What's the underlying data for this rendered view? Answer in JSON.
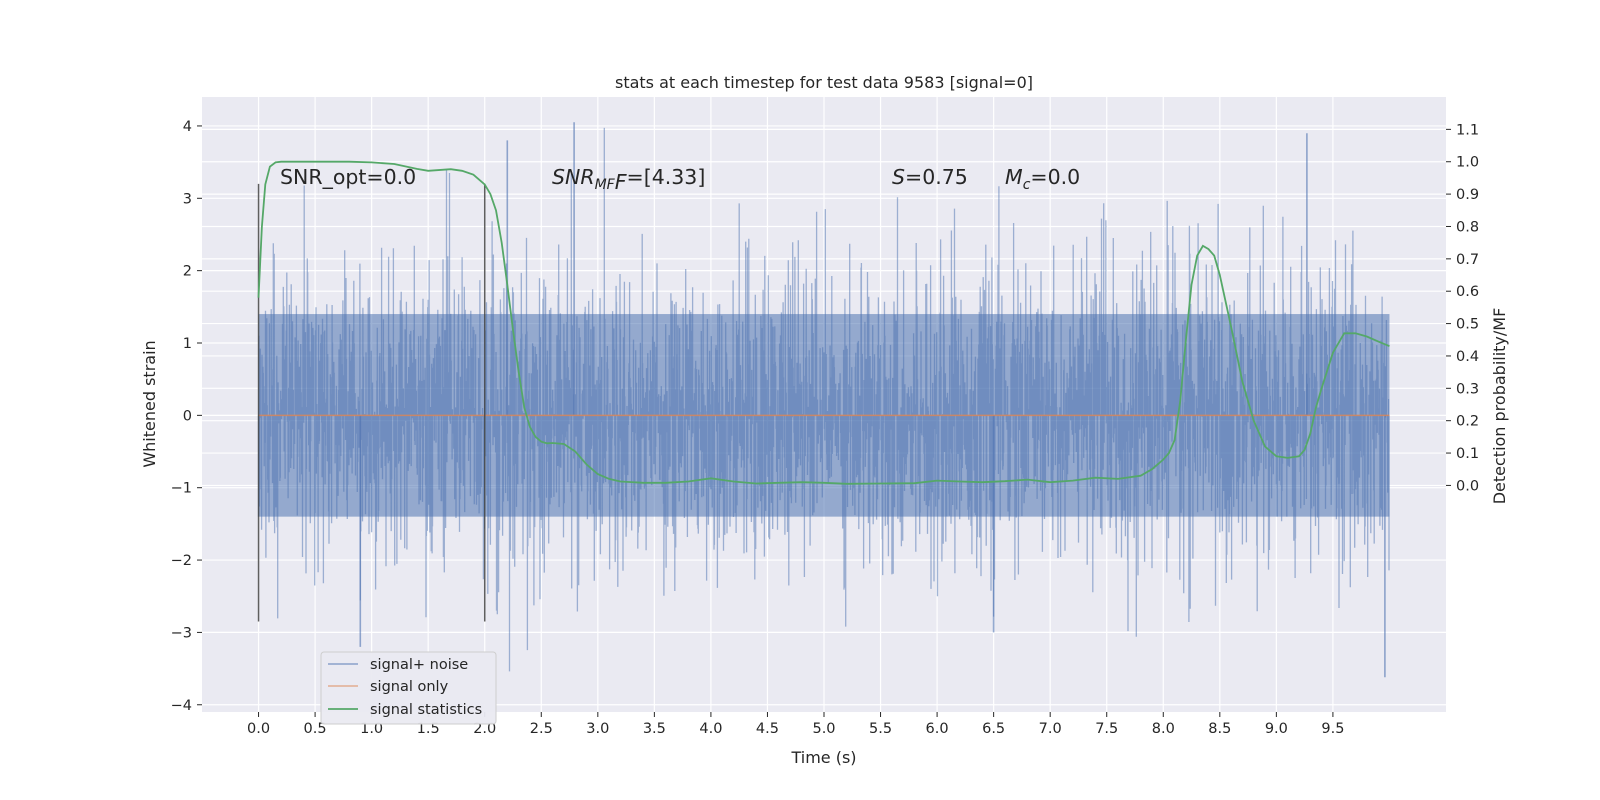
{
  "chart_data": {
    "type": "line",
    "title": "stats at each timestep for test data 9583 [signal=0]",
    "xlabel": "Time (s)",
    "ylabel": "Whitened strain",
    "ylabel_right": "Detection probability/MF",
    "xlim": [
      -0.5,
      10.5
    ],
    "ylim": [
      -4.1,
      4.4
    ],
    "ylim_right": [
      -0.7,
      1.2
    ],
    "x_ticks": [
      "0.0",
      "0.5",
      "1.0",
      "1.5",
      "2.0",
      "2.5",
      "3.0",
      "3.5",
      "4.0",
      "4.5",
      "5.0",
      "5.5",
      "6.0",
      "6.5",
      "7.0",
      "7.5",
      "8.0",
      "8.5",
      "9.0",
      "9.5"
    ],
    "y_ticks": [
      "4",
      "3",
      "2",
      "1",
      "0",
      "−1",
      "−2",
      "−3",
      "−4"
    ],
    "y_ticks_right": [
      "1.1",
      "1.0",
      "0.9",
      "0.8",
      "0.7",
      "0.6",
      "0.5",
      "0.4",
      "0.3",
      "0.2",
      "0.1",
      "0.0"
    ],
    "grid": true,
    "legend_placement": "lower-left",
    "annotations": {
      "snr_opt": "SNR_opt=0.0",
      "snr_mf_base": "SNR",
      "snr_mf_sub": "MF",
      "snr_mf_value": "=[4.33]",
      "s_symbol": "S",
      "s_value": "=0.75",
      "mc_base": "M",
      "mc_sub": "c",
      "mc_value": "=0.0"
    },
    "vertical_markers": [
      {
        "x": 0.0,
        "y_range": [
          -2.85,
          3.2
        ]
      },
      {
        "x": 2.0,
        "y_range": [
          -2.85,
          3.2
        ]
      }
    ],
    "series": [
      {
        "name": "signal+ noise",
        "color": "#4c72b0",
        "kind": "noise",
        "x_range": [
          0.0,
          10.0
        ],
        "core_band": [
          -1.4,
          1.4
        ],
        "max_positive": 4.05,
        "min_negative": -3.62
      },
      {
        "name": "signal only",
        "color": "#dd8452",
        "kind": "flat",
        "x": [
          0.0,
          10.0
        ],
        "y": [
          0.0,
          0.0
        ]
      },
      {
        "name": "signal statistics",
        "color": "#55a868",
        "kind": "line",
        "axis": "right",
        "x": [
          0.0,
          0.03,
          0.06,
          0.1,
          0.15,
          0.2,
          0.3,
          0.5,
          0.8,
          1.0,
          1.2,
          1.4,
          1.5,
          1.7,
          1.8,
          1.9,
          2.0,
          2.05,
          2.1,
          2.15,
          2.2,
          2.25,
          2.3,
          2.35,
          2.4,
          2.45,
          2.5,
          2.55,
          2.6,
          2.7,
          2.8,
          2.9,
          3.0,
          3.1,
          3.2,
          3.4,
          3.6,
          3.8,
          4.0,
          4.2,
          4.4,
          4.6,
          4.8,
          5.0,
          5.2,
          5.5,
          5.8,
          6.0,
          6.2,
          6.4,
          6.6,
          6.8,
          7.0,
          7.2,
          7.4,
          7.6,
          7.8,
          7.9,
          8.0,
          8.05,
          8.1,
          8.15,
          8.2,
          8.25,
          8.3,
          8.35,
          8.4,
          8.45,
          8.5,
          8.6,
          8.7,
          8.8,
          8.9,
          9.0,
          9.1,
          9.2,
          9.25,
          9.3,
          9.35,
          9.4,
          9.5,
          9.6,
          9.7,
          9.8,
          9.9,
          10.0
        ],
        "y": [
          0.58,
          0.8,
          0.93,
          0.985,
          0.998,
          1.0,
          1.0,
          1.0,
          1.0,
          0.998,
          0.993,
          0.978,
          0.972,
          0.977,
          0.972,
          0.96,
          0.93,
          0.9,
          0.85,
          0.75,
          0.62,
          0.48,
          0.35,
          0.24,
          0.18,
          0.15,
          0.135,
          0.13,
          0.131,
          0.128,
          0.105,
          0.065,
          0.035,
          0.02,
          0.012,
          0.008,
          0.008,
          0.012,
          0.022,
          0.012,
          0.006,
          0.008,
          0.01,
          0.008,
          0.005,
          0.006,
          0.007,
          0.015,
          0.012,
          0.01,
          0.013,
          0.018,
          0.01,
          0.015,
          0.024,
          0.02,
          0.03,
          0.05,
          0.08,
          0.1,
          0.14,
          0.26,
          0.45,
          0.62,
          0.71,
          0.74,
          0.73,
          0.71,
          0.65,
          0.49,
          0.32,
          0.2,
          0.12,
          0.09,
          0.085,
          0.09,
          0.11,
          0.16,
          0.24,
          0.3,
          0.41,
          0.47,
          0.47,
          0.46,
          0.445,
          0.43
        ]
      }
    ]
  }
}
